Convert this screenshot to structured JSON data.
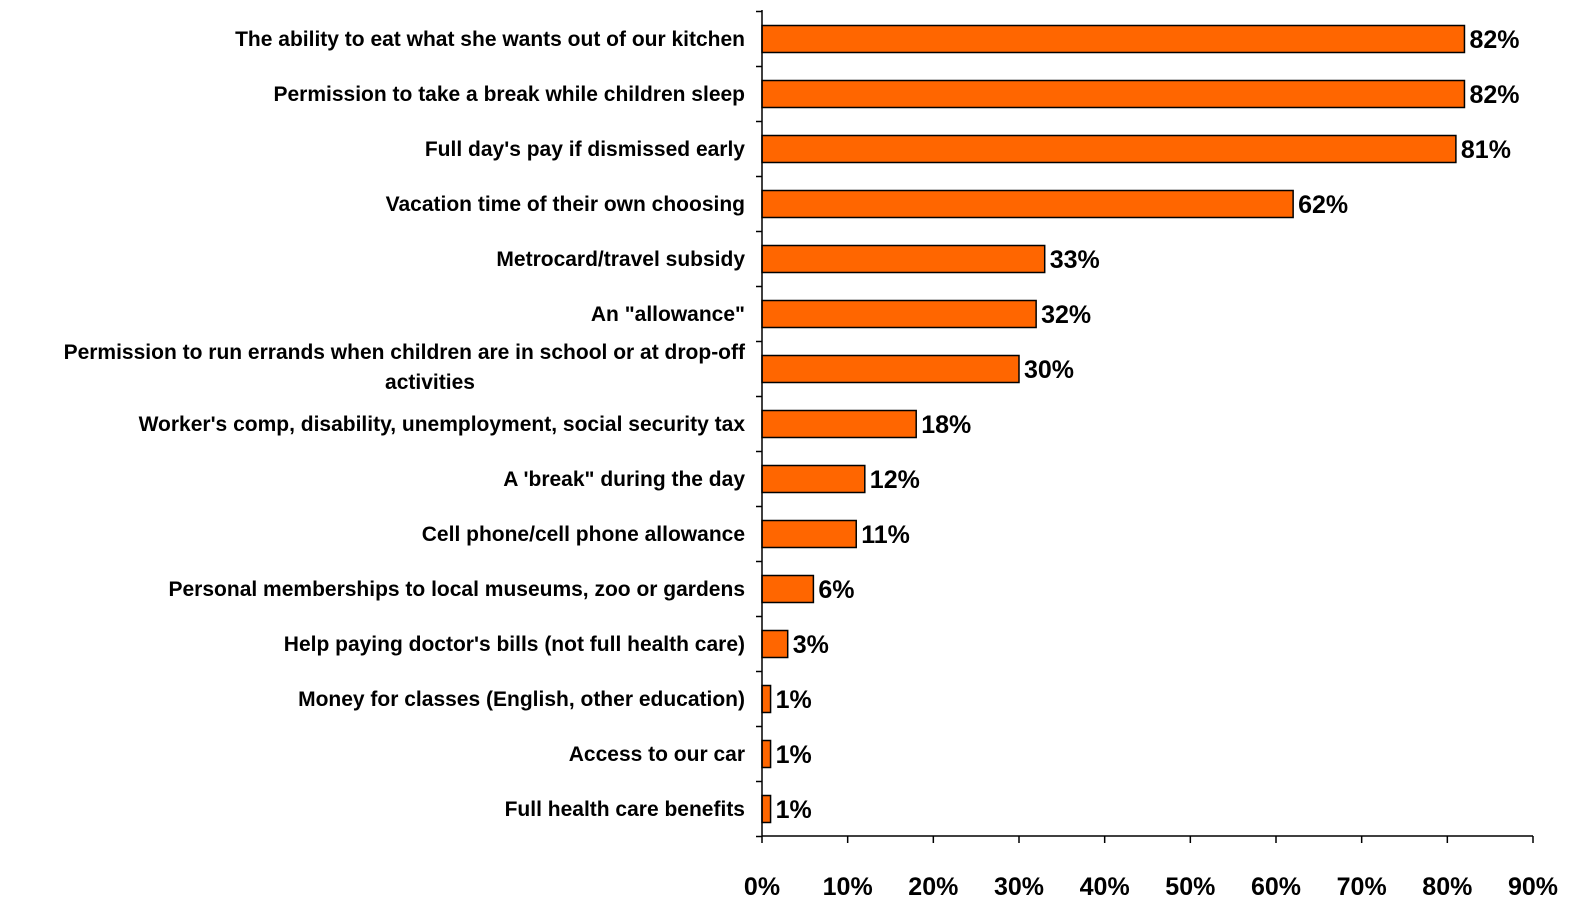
{
  "chart_data": {
    "type": "bar",
    "orientation": "horizontal",
    "categories": [
      "The ability to eat what she wants out of our kitchen",
      "Permission to take a break while children sleep",
      "Full day's pay if dismissed early",
      "Vacation time of their own choosing",
      "Metrocard/travel subsidy",
      "An \"allowance\"",
      "Permission to run errands when children are in school or at drop-off activities",
      "Worker's comp, disability, unemployment, social security tax",
      "A 'break\" during the day",
      "Cell phone/cell phone allowance",
      "Personal memberships to local museums, zoo or gardens",
      "Help paying doctor's bills (not full health care)",
      "Money for classes (English, other education)",
      "Access to our car",
      "Full health care benefits"
    ],
    "category_lines": [
      [
        "The ability to eat what she wants out of our kitchen"
      ],
      [
        "Permission to take a break while children sleep"
      ],
      [
        "Full day's pay if dismissed early"
      ],
      [
        "Vacation time of their own choosing"
      ],
      [
        "Metrocard/travel subsidy"
      ],
      [
        "An \"allowance\""
      ],
      [
        "Permission to run errands when children are in school or at drop-off",
        "activities"
      ],
      [
        "Worker's comp, disability, unemployment, social security tax"
      ],
      [
        "A 'break\" during the day"
      ],
      [
        "Cell phone/cell phone allowance"
      ],
      [
        "Personal memberships to local museums, zoo or gardens"
      ],
      [
        "Help paying doctor's bills (not full health care)"
      ],
      [
        "Money for classes (English, other education)"
      ],
      [
        "Access to our car"
      ],
      [
        "Full health care benefits"
      ]
    ],
    "values": [
      82,
      82,
      81,
      62,
      33,
      32,
      30,
      18,
      12,
      11,
      6,
      3,
      1,
      1,
      1
    ],
    "data_labels": [
      "82%",
      "82%",
      "81%",
      "62%",
      "33%",
      "32%",
      "30%",
      "18%",
      "12%",
      "11%",
      "6%",
      "3%",
      "1%",
      "1%",
      "1%"
    ],
    "xlim": [
      0,
      90
    ],
    "x_ticks": [
      0,
      10,
      20,
      30,
      40,
      50,
      60,
      70,
      80,
      90
    ],
    "x_tick_labels": [
      "0%",
      "10%",
      "20%",
      "30%",
      "40%",
      "50%",
      "60%",
      "70%",
      "80%",
      "90%"
    ],
    "title": "",
    "xlabel": "",
    "ylabel": "",
    "grid": false,
    "legend": "none",
    "bar_color": "#FF6600",
    "bar_edge_color": "#000000"
  }
}
